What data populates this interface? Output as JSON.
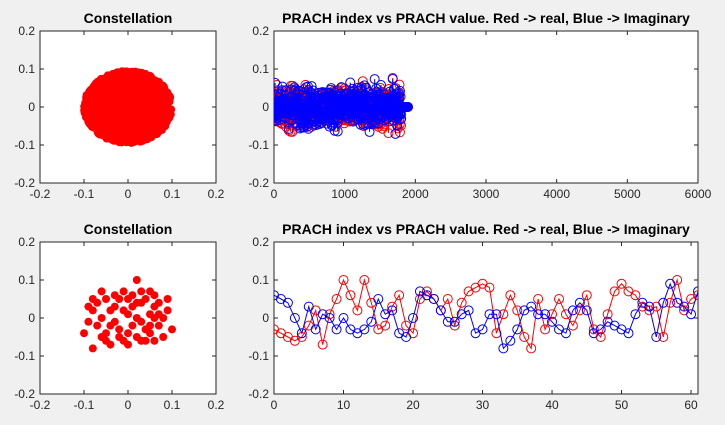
{
  "chart_data": [
    {
      "type": "scatter",
      "title": "Constellation",
      "xlim": [
        -0.2,
        0.2
      ],
      "ylim": [
        -0.2,
        0.2
      ],
      "xticks": [
        "-0.2",
        "-0.1",
        "0",
        "0.1",
        "0.2"
      ],
      "yticks": [
        "-0.2",
        "-0.1",
        "0",
        "0.1",
        "0.2"
      ],
      "grid": false,
      "marker_color": "#ff0000",
      "description_points": "dense cloud of ~1800 points, roughly circular, radius ~0.1 centered at origin",
      "point_count": 1800,
      "radius": 0.1
    },
    {
      "type": "line",
      "title": "PRACH index vs PRACH value. Red -> real, Blue -> Imaginary",
      "xlim": [
        0,
        6000
      ],
      "ylim": [
        -0.2,
        0.2
      ],
      "xticks": [
        "0",
        "1000",
        "2000",
        "3000",
        "4000",
        "5000",
        "6000"
      ],
      "yticks": [
        "-0.2",
        "-0.1",
        "0",
        "0.1",
        "0.2"
      ],
      "grid": false,
      "series": [
        {
          "color": "#ff0000",
          "marker": "circle",
          "dense_range": [
            0,
            1800
          ],
          "zero_tail": [
            1800,
            1900
          ],
          "amplitude": 0.1
        },
        {
          "color": "#0000ff",
          "marker": "circle",
          "dense_range": [
            0,
            1800
          ],
          "zero_tail": [
            1800,
            1900
          ],
          "amplitude": 0.1
        }
      ]
    },
    {
      "type": "scatter",
      "title": "Constellation",
      "xlim": [
        -0.2,
        0.2
      ],
      "ylim": [
        -0.2,
        0.2
      ],
      "xticks": [
        "-0.2",
        "-0.1",
        "0",
        "0.1",
        "0.2"
      ],
      "yticks": [
        "-0.2",
        "-0.1",
        "0",
        "0.1",
        "0.2"
      ],
      "grid": false,
      "marker_color": "#ff0000",
      "points": [
        [
          -0.03,
          0.06
        ],
        [
          -0.05,
          0.05
        ],
        [
          -0.07,
          0.04
        ],
        [
          -0.09,
          0.03
        ],
        [
          -0.08,
          0.02
        ],
        [
          -0.06,
          0.0
        ],
        [
          -0.04,
          -0.02
        ],
        [
          -0.02,
          -0.03
        ],
        [
          0.0,
          -0.04
        ],
        [
          0.02,
          -0.05
        ],
        [
          0.04,
          -0.06
        ],
        [
          0.05,
          -0.04
        ],
        [
          0.07,
          -0.02
        ],
        [
          0.08,
          0.0
        ],
        [
          0.06,
          0.03
        ],
        [
          0.03,
          0.04
        ],
        [
          0.01,
          0.06
        ],
        [
          -0.01,
          0.07
        ],
        [
          0.02,
          0.1
        ],
        [
          0.05,
          0.07
        ],
        [
          0.09,
          0.05
        ],
        [
          0.1,
          -0.03
        ],
        [
          -0.1,
          -0.04
        ],
        [
          -0.08,
          -0.08
        ],
        [
          -0.05,
          -0.06
        ],
        [
          -0.02,
          -0.05
        ],
        [
          0.01,
          -0.02
        ],
        [
          0.03,
          -0.01
        ],
        [
          0.05,
          0.01
        ],
        [
          0.07,
          0.04
        ],
        [
          -0.06,
          0.07
        ],
        [
          -0.03,
          0.03
        ],
        [
          0.0,
          0.01
        ],
        [
          0.02,
          0.0
        ],
        [
          0.04,
          0.05
        ],
        [
          0.06,
          -0.06
        ],
        [
          -0.07,
          -0.02
        ],
        [
          -0.04,
          0.02
        ],
        [
          0.08,
          -0.05
        ],
        [
          -0.01,
          -0.06
        ],
        [
          0.03,
          0.07
        ],
        [
          -0.09,
          -0.01
        ],
        [
          0.06,
          0.06
        ],
        [
          -0.02,
          0.05
        ],
        [
          0.0,
          -0.07
        ],
        [
          0.05,
          -0.02
        ],
        [
          -0.05,
          -0.04
        ],
        [
          0.01,
          0.03
        ],
        [
          0.09,
          0.02
        ],
        [
          -0.06,
          -0.05
        ],
        [
          0.04,
          -0.03
        ],
        [
          -0.03,
          -0.01
        ],
        [
          0.07,
          0.01
        ],
        [
          0.02,
          0.04
        ],
        [
          -0.08,
          0.05
        ],
        [
          0.03,
          -0.06
        ],
        [
          -0.01,
          0.02
        ],
        [
          0.06,
          0.0
        ],
        [
          -0.04,
          -0.07
        ],
        [
          0.0,
          0.05
        ]
      ]
    },
    {
      "type": "line",
      "title": "PRACH index vs PRACH value. Red -> real, Blue -> Imaginary",
      "xlim": [
        0,
        61
      ],
      "ylim": [
        -0.2,
        0.2
      ],
      "xticks": [
        "0",
        "10",
        "20",
        "30",
        "40",
        "50",
        "60"
      ],
      "yticks": [
        "-0.2",
        "-0.1",
        "0",
        "0.1",
        "0.2"
      ],
      "grid": false,
      "x": [
        0,
        1,
        2,
        3,
        4,
        5,
        6,
        7,
        8,
        9,
        10,
        11,
        12,
        13,
        14,
        15,
        16,
        17,
        18,
        19,
        20,
        21,
        22,
        23,
        24,
        25,
        26,
        27,
        28,
        29,
        30,
        31,
        32,
        33,
        34,
        35,
        36,
        37,
        38,
        39,
        40,
        41,
        42,
        43,
        44,
        45,
        46,
        47,
        48,
        49,
        50,
        51,
        52,
        53,
        54,
        55,
        56,
        57,
        58,
        59,
        60,
        61
      ],
      "series": [
        {
          "color": "#ff0000",
          "marker": "circle",
          "values": [
            -0.03,
            -0.04,
            -0.05,
            -0.06,
            -0.05,
            -0.02,
            0.02,
            -0.07,
            0.01,
            0.05,
            0.1,
            0.06,
            0.02,
            0.1,
            0.04,
            -0.03,
            -0.02,
            0.03,
            0.06,
            -0.02,
            -0.04,
            0.05,
            0.07,
            0.05,
            0.02,
            0.05,
            -0.02,
            0.04,
            0.07,
            0.08,
            0.09,
            0.08,
            -0.04,
            0.01,
            0.06,
            0.02,
            -0.05,
            -0.08,
            0.05,
            -0.03,
            0.01,
            0.05,
            0.01,
            -0.02,
            0.02,
            0.06,
            -0.03,
            -0.05,
            0.01,
            0.07,
            0.09,
            0.07,
            0.06,
            0.03,
            0.02,
            0.03,
            -0.05,
            0.04,
            0.1,
            0.02,
            0.05,
            0.06
          ]
        },
        {
          "color": "#0000ff",
          "marker": "circle",
          "values": [
            0.06,
            0.05,
            0.04,
            0.0,
            -0.04,
            0.03,
            -0.03,
            0.01,
            0.0,
            -0.03,
            0.0,
            -0.03,
            -0.04,
            -0.03,
            -0.01,
            0.05,
            0.01,
            0.02,
            -0.04,
            -0.05,
            0.0,
            0.07,
            0.06,
            0.05,
            0.02,
            -0.01,
            -0.01,
            0.01,
            0.02,
            -0.04,
            -0.03,
            0.01,
            0.01,
            -0.08,
            -0.06,
            -0.03,
            0.02,
            0.03,
            0.01,
            0.01,
            -0.01,
            -0.03,
            -0.04,
            0.02,
            0.04,
            0.02,
            -0.04,
            -0.03,
            -0.01,
            -0.02,
            -0.03,
            -0.04,
            0.01,
            0.04,
            0.03,
            -0.05,
            0.04,
            0.09,
            0.04,
            0.03,
            0.01,
            0.07
          ]
        }
      ]
    }
  ]
}
